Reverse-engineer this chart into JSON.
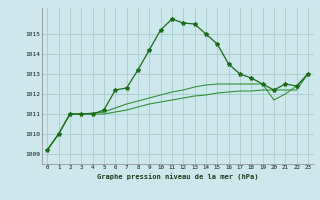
{
  "background_color": "#cce8ec",
  "grid_color": "#aacccc",
  "line_color_main": "#1a6b1a",
  "line_color_secondary": "#2d8c2d",
  "xlabel": "Graphe pression niveau de la mer (hPa)",
  "ylim": [
    1008.5,
    1016.3
  ],
  "xlim": [
    -0.5,
    23.5
  ],
  "yticks": [
    1009,
    1010,
    1011,
    1012,
    1013,
    1014,
    1015
  ],
  "xticks": [
    0,
    1,
    2,
    3,
    4,
    5,
    6,
    7,
    8,
    9,
    10,
    11,
    12,
    13,
    14,
    15,
    16,
    17,
    18,
    19,
    20,
    21,
    22,
    23
  ],
  "series1_x": [
    0,
    1,
    2,
    3,
    4,
    5,
    6,
    7,
    8,
    9,
    10,
    11,
    12,
    13,
    14,
    15,
    16,
    17,
    18,
    19,
    20,
    21,
    22,
    23
  ],
  "series1_y": [
    1009.2,
    1010.0,
    1011.0,
    1011.0,
    1011.0,
    1011.2,
    1012.2,
    1012.3,
    1013.2,
    1014.2,
    1015.2,
    1015.75,
    1015.55,
    1015.5,
    1015.0,
    1014.5,
    1013.5,
    1013.0,
    1012.8,
    1012.5,
    1012.2,
    1012.5,
    1012.4,
    1013.0
  ],
  "series2_x": [
    0,
    1,
    2,
    3,
    4,
    5,
    6,
    7,
    8,
    9,
    10,
    11,
    12,
    13,
    14,
    15,
    16,
    17,
    18,
    19,
    20,
    21,
    22,
    23
  ],
  "series2_y": [
    1009.2,
    1010.0,
    1011.0,
    1011.0,
    1011.05,
    1011.1,
    1011.3,
    1011.5,
    1011.65,
    1011.8,
    1011.95,
    1012.1,
    1012.2,
    1012.35,
    1012.45,
    1012.5,
    1012.5,
    1012.5,
    1012.5,
    1012.5,
    1011.7,
    1012.0,
    1012.4,
    1013.0
  ],
  "series3_x": [
    0,
    1,
    2,
    3,
    4,
    5,
    6,
    7,
    8,
    9,
    10,
    11,
    12,
    13,
    14,
    15,
    16,
    17,
    18,
    19,
    20,
    21,
    22,
    23
  ],
  "series3_y": [
    1009.2,
    1010.0,
    1011.0,
    1011.0,
    1011.0,
    1011.0,
    1011.1,
    1011.2,
    1011.35,
    1011.5,
    1011.6,
    1011.7,
    1011.8,
    1011.9,
    1011.95,
    1012.05,
    1012.1,
    1012.15,
    1012.15,
    1012.2,
    1012.2,
    1012.2,
    1012.2,
    1013.0
  ]
}
